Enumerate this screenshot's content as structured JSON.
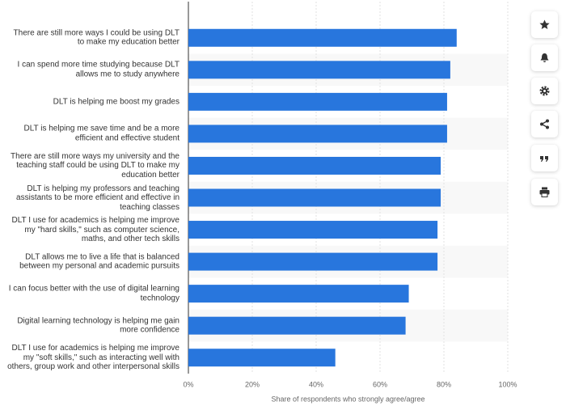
{
  "chart_data": {
    "type": "hbar",
    "categories": [
      "There are still more ways I could be using DLT to make my education better",
      "I can spend more time studying because DLT allows me to study anywhere",
      "DLT is helping me boost my grades",
      "DLT is helping me save time and be a more efficient and effective student",
      "There are still more ways my university and the teaching staff could be using DLT to make my education better",
      "DLT is helping my professors and teaching assistants to be more efficient and effective in teaching classes",
      "DLT I use for academics is helping me improve my \"hard skills,\" such as computer science, maths, and other tech skills",
      "DLT allows me to live a life that is balanced between my personal and academic pursuits",
      "I can focus better with the use of digital learning technology",
      "Digital learning technology is helping me gain more confidence",
      "DLT I use for academics is helping me improve my \"soft skills,\" such as interacting well with others, group work and other interpersonal skills"
    ],
    "values": [
      84,
      82,
      81,
      81,
      79,
      79,
      78,
      78,
      69,
      68,
      46
    ],
    "color": "#2876dd",
    "xlabel": "Share of respondents who strongly agree/agree",
    "xlim": [
      0,
      100
    ],
    "xticks": [
      {
        "value": 0,
        "label": "0%"
      },
      {
        "value": 20,
        "label": "20%"
      },
      {
        "value": 40,
        "label": "40%"
      },
      {
        "value": 60,
        "label": "60%"
      },
      {
        "value": 80,
        "label": "80%"
      },
      {
        "value": 100,
        "label": "100%"
      }
    ],
    "grid": true
  }
}
